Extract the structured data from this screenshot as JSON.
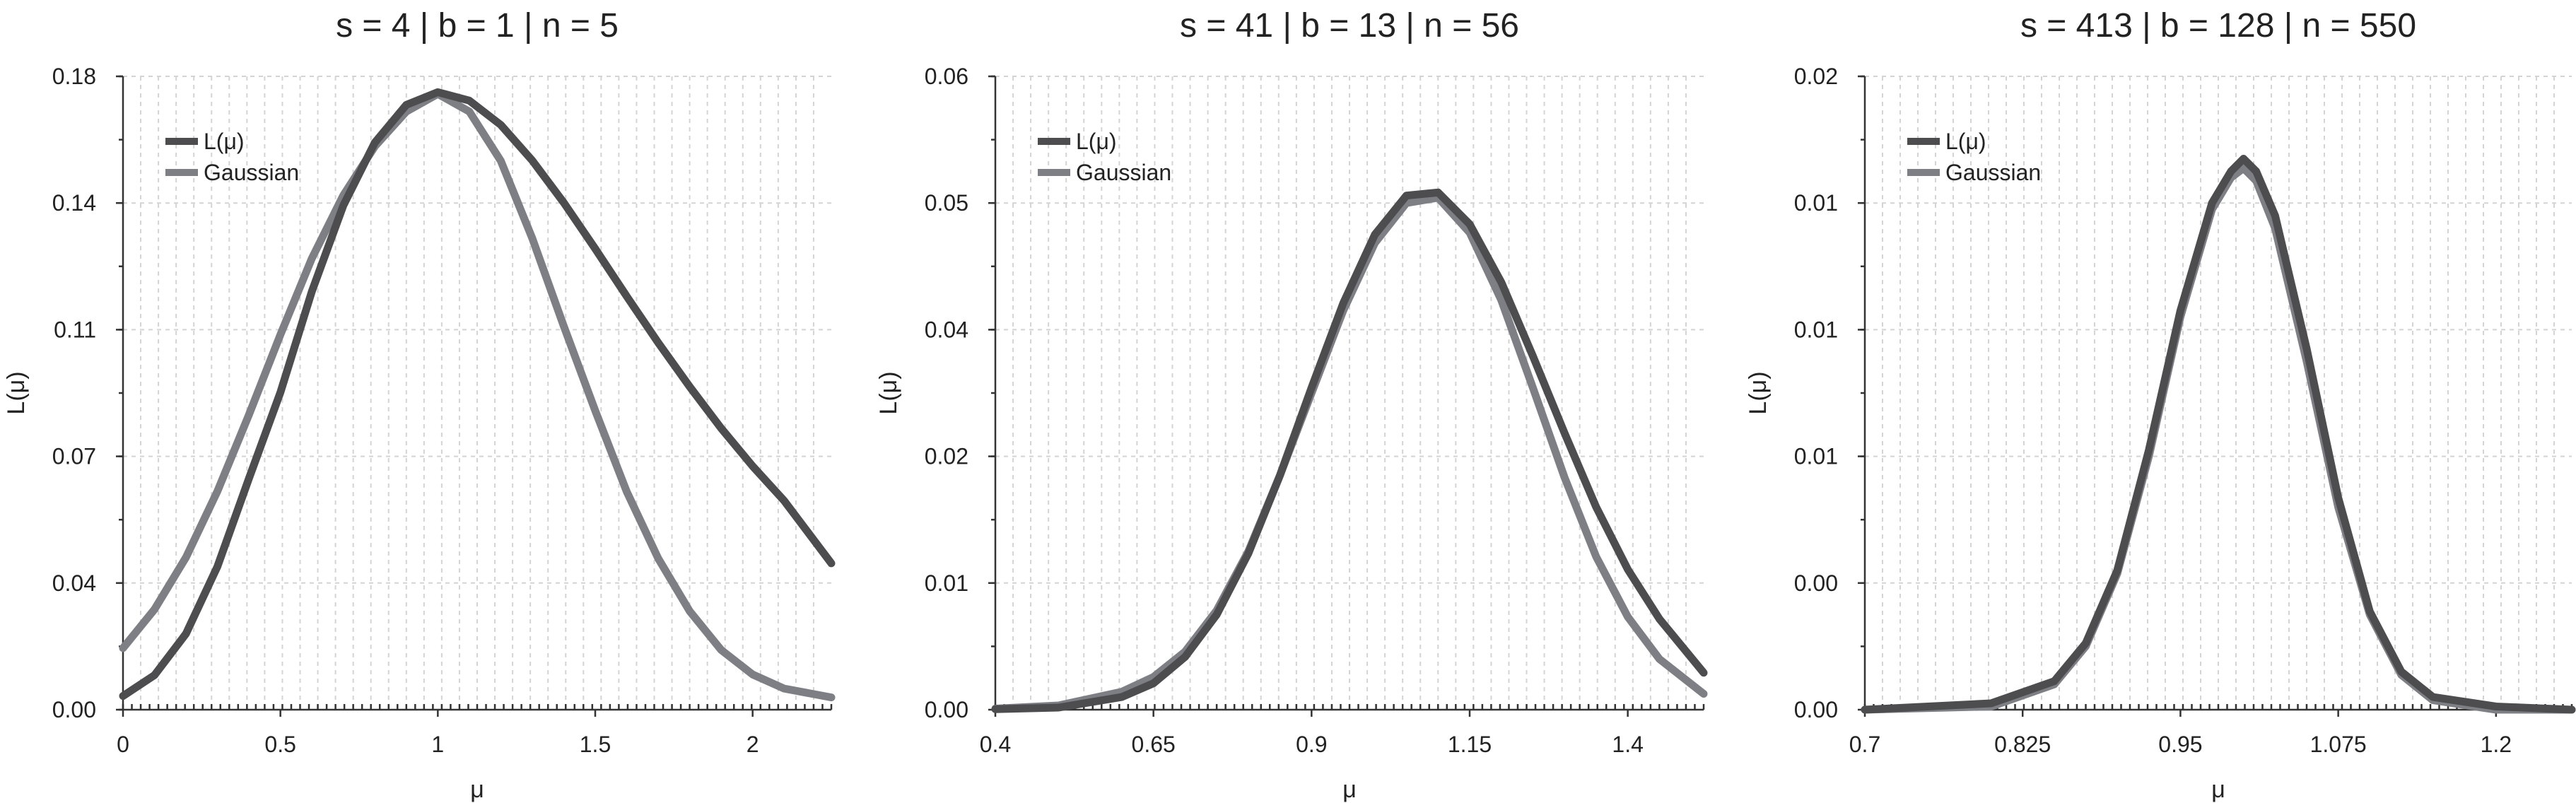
{
  "chart_data": [
    {
      "type": "line",
      "title": "s = 4 | b = 1 | n = 5",
      "xlabel": "μ",
      "ylabel": "L(μ)",
      "xlim": [
        0,
        2.25
      ],
      "ylim": [
        0,
        0.18
      ],
      "xticks": [
        0,
        0.5,
        1,
        1.5,
        2
      ],
      "xtick_labels": [
        "0",
        "0.5",
        "1",
        "1.5",
        "2"
      ],
      "yticks": [
        0,
        0.036,
        0.072,
        0.108,
        0.144,
        0.18
      ],
      "ytick_labels": [
        "0.00",
        "0.04",
        "0.07",
        "0.11",
        "0.14",
        "0.18"
      ],
      "grid": true,
      "legend": "top-left",
      "series": [
        {
          "name": "L(μ)",
          "color": "#4d4d4f",
          "x": [
            0,
            0.1,
            0.2,
            0.3,
            0.4,
            0.5,
            0.6,
            0.7,
            0.8,
            0.9,
            1.0,
            1.1,
            1.2,
            1.3,
            1.4,
            1.5,
            1.6,
            1.7,
            1.8,
            1.9,
            2.0,
            2.1,
            2.25
          ],
          "values": [
            0.0039,
            0.0098,
            0.0216,
            0.0407,
            0.0657,
            0.0902,
            0.1189,
            0.1433,
            0.1612,
            0.1719,
            0.1755,
            0.1731,
            0.1662,
            0.1561,
            0.1441,
            0.131,
            0.1175,
            0.1043,
            0.0918,
            0.08,
            0.0692,
            0.0594,
            0.0416
          ]
        },
        {
          "name": "Gaussian",
          "color": "#7d7f85",
          "x": [
            0,
            0.1,
            0.2,
            0.3,
            0.4,
            0.5,
            0.6,
            0.7,
            0.8,
            0.9,
            1.0,
            1.1,
            1.2,
            1.3,
            1.4,
            1.5,
            1.6,
            1.7,
            1.8,
            1.9,
            2.0,
            2.1,
            2.25
          ],
          "values": [
            0.0175,
            0.0285,
            0.0433,
            0.0621,
            0.0838,
            0.1066,
            0.1283,
            0.1462,
            0.1601,
            0.17,
            0.175,
            0.17,
            0.156,
            0.134,
            0.109,
            0.085,
            0.062,
            0.043,
            0.028,
            0.017,
            0.01,
            0.006,
            0.0035
          ]
        }
      ]
    },
    {
      "type": "line",
      "title": "s = 41 | b = 13 | n = 56",
      "xlabel": "μ",
      "ylabel": "L(μ)",
      "xlim": [
        0.4,
        1.52
      ],
      "ylim": [
        0,
        0.06
      ],
      "xticks": [
        0.4,
        0.65,
        0.9,
        1.15,
        1.4
      ],
      "xtick_labels": [
        "0.4",
        "0.65",
        "0.9",
        "1.15",
        "1.4"
      ],
      "yticks": [
        0,
        0.012,
        0.024,
        0.036,
        0.048,
        0.06
      ],
      "ytick_labels": [
        "0.00",
        "0.01",
        "0.02",
        "0.04",
        "0.05",
        "0.06"
      ],
      "grid": true,
      "legend": "top-left",
      "series": [
        {
          "name": "L(μ)",
          "color": "#4d4d4f",
          "x": [
            0.4,
            0.5,
            0.6,
            0.65,
            0.7,
            0.75,
            0.8,
            0.85,
            0.9,
            0.95,
            1.0,
            1.05,
            1.1,
            1.15,
            1.2,
            1.25,
            1.3,
            1.35,
            1.4,
            1.45,
            1.52
          ],
          "values": [
            5e-05,
            0.0002,
            0.0012,
            0.0025,
            0.005,
            0.009,
            0.0148,
            0.0222,
            0.0305,
            0.0385,
            0.045,
            0.0487,
            0.049,
            0.046,
            0.0405,
            0.0335,
            0.0262,
            0.0192,
            0.0133,
            0.0086,
            0.0035
          ]
        },
        {
          "name": "Gaussian",
          "color": "#7d7f85",
          "x": [
            0.4,
            0.5,
            0.6,
            0.65,
            0.7,
            0.75,
            0.8,
            0.85,
            0.9,
            0.95,
            1.0,
            1.05,
            1.1,
            1.15,
            1.2,
            1.25,
            1.3,
            1.35,
            1.4,
            1.45,
            1.52
          ],
          "values": [
            0.0001,
            0.0004,
            0.0017,
            0.0031,
            0.0055,
            0.0094,
            0.015,
            0.0222,
            0.03,
            0.0378,
            0.0442,
            0.048,
            0.0485,
            0.0452,
            0.0388,
            0.0305,
            0.022,
            0.0145,
            0.0088,
            0.0048,
            0.0015
          ]
        }
      ]
    },
    {
      "type": "line",
      "title": "s = 413 | b = 128 | n = 550",
      "xlabel": "μ",
      "ylabel": "L(μ)",
      "xlim": [
        0.7,
        1.26
      ],
      "ylim": [
        0,
        0.02
      ],
      "xticks": [
        0.7,
        0.825,
        0.95,
        1.075,
        1.2
      ],
      "xtick_labels": [
        "0.7",
        "0.825",
        "0.95",
        "1.075",
        "1.2"
      ],
      "yticks": [
        0,
        0.004,
        0.008,
        0.012,
        0.016,
        0.02
      ],
      "ytick_labels": [
        "0.00",
        "0.00",
        "0.01",
        "0.01",
        "0.01",
        "0.02"
      ],
      "grid": true,
      "legend": "top-left",
      "series": [
        {
          "name": "L(μ)",
          "color": "#4d4d4f",
          "x": [
            0.7,
            0.8,
            0.85,
            0.875,
            0.9,
            0.925,
            0.95,
            0.975,
            0.99,
            1.0,
            1.01,
            1.025,
            1.05,
            1.075,
            1.1,
            1.125,
            1.15,
            1.2,
            1.26
          ],
          "values": [
            0.0,
            0.0002,
            0.0009,
            0.0021,
            0.0044,
            0.0082,
            0.0126,
            0.016,
            0.017,
            0.0174,
            0.017,
            0.0156,
            0.0114,
            0.0067,
            0.0031,
            0.0012,
            0.0004,
            0.0001,
            0.0
          ]
        },
        {
          "name": "Gaussian",
          "color": "#7d7f85",
          "x": [
            0.7,
            0.8,
            0.85,
            0.875,
            0.9,
            0.925,
            0.95,
            0.975,
            0.99,
            1.0,
            1.01,
            1.025,
            1.05,
            1.075,
            1.1,
            1.125,
            1.15,
            1.2,
            1.26
          ],
          "values": [
            0.0,
            0.0001,
            0.0008,
            0.002,
            0.0043,
            0.008,
            0.0124,
            0.0158,
            0.0168,
            0.0171,
            0.0167,
            0.0152,
            0.011,
            0.0064,
            0.003,
            0.0011,
            0.0003,
            0.0,
            0.0
          ]
        }
      ]
    }
  ]
}
